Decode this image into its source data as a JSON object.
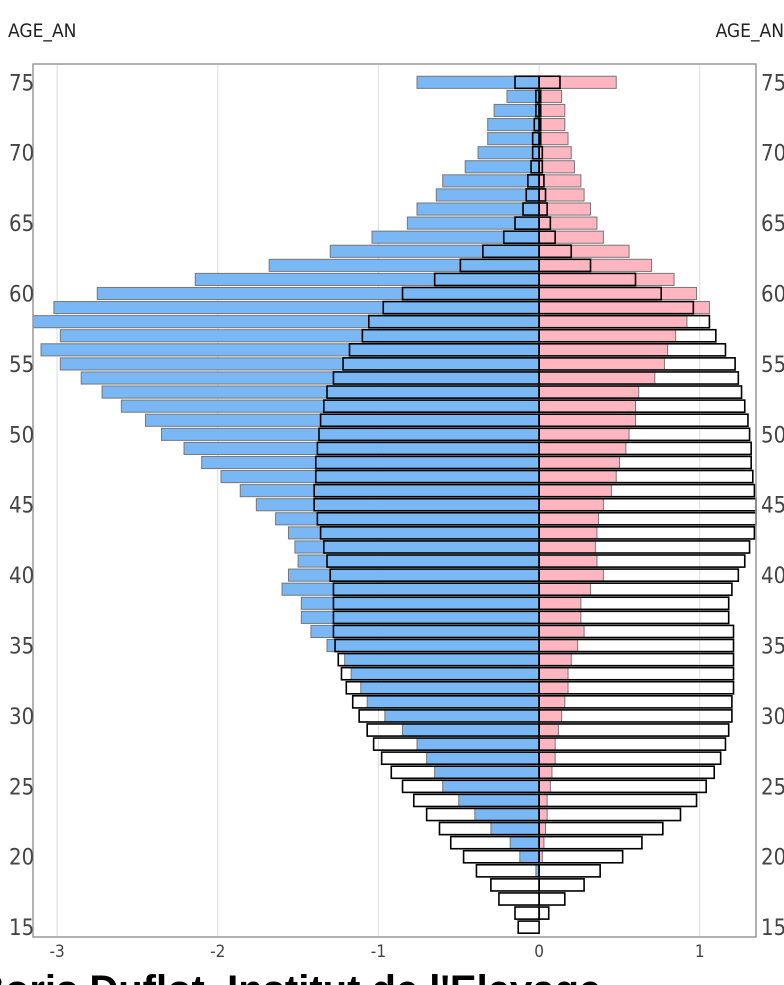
{
  "labels": {
    "left_axis_title": "AGE_AN",
    "right_axis_title": "AGE_AN",
    "footer": "Boris Duflot, Institut de l'Elevage"
  },
  "colors": {
    "blue_fill": "#7ab8f5",
    "pink_fill": "#ffb6c1",
    "outline": "#000000",
    "bar_border_grey": "#777777",
    "grid": "#dddddd"
  },
  "chart_data": {
    "type": "bar",
    "orientation": "horizontal-population-pyramid",
    "x_ticks": [
      -3,
      -2,
      -1,
      0,
      1
    ],
    "y_ticks": [
      15,
      20,
      25,
      30,
      35,
      40,
      45,
      50,
      55,
      60,
      65,
      70,
      75
    ],
    "xlim": [
      -3.15,
      1.35
    ],
    "ylim": [
      14.3,
      76.3
    ],
    "grid": "vertical",
    "ages": [
      15,
      16,
      17,
      18,
      19,
      20,
      21,
      22,
      23,
      24,
      25,
      26,
      27,
      28,
      29,
      30,
      31,
      32,
      33,
      34,
      35,
      36,
      37,
      38,
      39,
      40,
      41,
      42,
      43,
      44,
      45,
      46,
      47,
      48,
      49,
      50,
      51,
      52,
      53,
      54,
      55,
      56,
      57,
      58,
      59,
      60,
      61,
      62,
      63,
      64,
      65,
      66,
      67,
      68,
      69,
      70,
      71,
      72,
      73,
      74,
      75
    ],
    "series": [
      {
        "fill": "blue",
        "values": [
          0,
          0,
          0,
          0,
          -0.02,
          -0.12,
          -0.18,
          -0.3,
          -0.4,
          -0.5,
          -0.6,
          -0.65,
          -0.7,
          -0.76,
          -0.85,
          -0.96,
          -1.07,
          -1.11,
          -1.17,
          -1.21,
          -1.32,
          -1.42,
          -1.48,
          -1.48,
          -1.6,
          -1.56,
          -1.5,
          -1.52,
          -1.56,
          -1.64,
          -1.76,
          -1.86,
          -1.98,
          -2.1,
          -2.21,
          -2.35,
          -2.45,
          -2.6,
          -2.72,
          -2.85,
          -2.98,
          -3.1,
          -2.98,
          -3.15,
          -3.02,
          -2.75,
          -2.14,
          -1.68,
          -1.3,
          -1.04,
          -0.82,
          -0.76,
          -0.64,
          -0.6,
          -0.46,
          -0.38,
          -0.32,
          -0.32,
          -0.28,
          -0.2,
          -0.76
        ]
      },
      {
        "fill": "pink",
        "values": [
          0,
          0,
          0,
          0,
          0,
          0.02,
          0.03,
          0.04,
          0.05,
          0.05,
          0.07,
          0.08,
          0.1,
          0.1,
          0.12,
          0.14,
          0.16,
          0.18,
          0.18,
          0.2,
          0.24,
          0.28,
          0.26,
          0.26,
          0.32,
          0.4,
          0.36,
          0.35,
          0.36,
          0.37,
          0.4,
          0.45,
          0.48,
          0.5,
          0.54,
          0.56,
          0.6,
          0.6,
          0.62,
          0.72,
          0.78,
          0.8,
          0.85,
          0.92,
          1.06,
          0.98,
          0.84,
          0.7,
          0.56,
          0.4,
          0.36,
          0.32,
          0.28,
          0.26,
          0.22,
          0.2,
          0.18,
          0.16,
          0.16,
          0.14,
          0.48
        ]
      },
      {
        "fill": "outline",
        "name_left": "left outline",
        "values": [
          -0.13,
          -0.15,
          -0.25,
          -0.3,
          -0.39,
          -0.47,
          -0.55,
          -0.62,
          -0.7,
          -0.78,
          -0.85,
          -0.92,
          -0.98,
          -1.03,
          -1.07,
          -1.12,
          -1.16,
          -1.2,
          -1.23,
          -1.25,
          -1.27,
          -1.28,
          -1.28,
          -1.28,
          -1.28,
          -1.3,
          -1.32,
          -1.34,
          -1.36,
          -1.38,
          -1.4,
          -1.4,
          -1.39,
          -1.39,
          -1.38,
          -1.37,
          -1.36,
          -1.34,
          -1.32,
          -1.28,
          -1.22,
          -1.18,
          -1.1,
          -1.06,
          -0.97,
          -0.85,
          -0.65,
          -0.49,
          -0.35,
          -0.22,
          -0.15,
          -0.1,
          -0.08,
          -0.07,
          -0.05,
          -0.04,
          -0.04,
          -0.03,
          -0.02,
          -0.02,
          -0.15
        ]
      },
      {
        "fill": "outline",
        "name_right": "right outline",
        "values": [
          0,
          0.06,
          0.16,
          0.28,
          0.38,
          0.52,
          0.64,
          0.77,
          0.88,
          0.98,
          1.04,
          1.09,
          1.13,
          1.16,
          1.18,
          1.2,
          1.2,
          1.21,
          1.21,
          1.21,
          1.21,
          1.21,
          1.18,
          1.18,
          1.2,
          1.24,
          1.28,
          1.31,
          1.34,
          1.35,
          1.35,
          1.34,
          1.33,
          1.32,
          1.32,
          1.31,
          1.3,
          1.28,
          1.26,
          1.24,
          1.22,
          1.16,
          1.1,
          1.06,
          0.96,
          0.76,
          0.6,
          0.32,
          0.2,
          0.1,
          0.07,
          0.05,
          0.04,
          0.03,
          0.02,
          0.02,
          0.01,
          0.01,
          0.01,
          0.01,
          0.13
        ]
      }
    ]
  }
}
